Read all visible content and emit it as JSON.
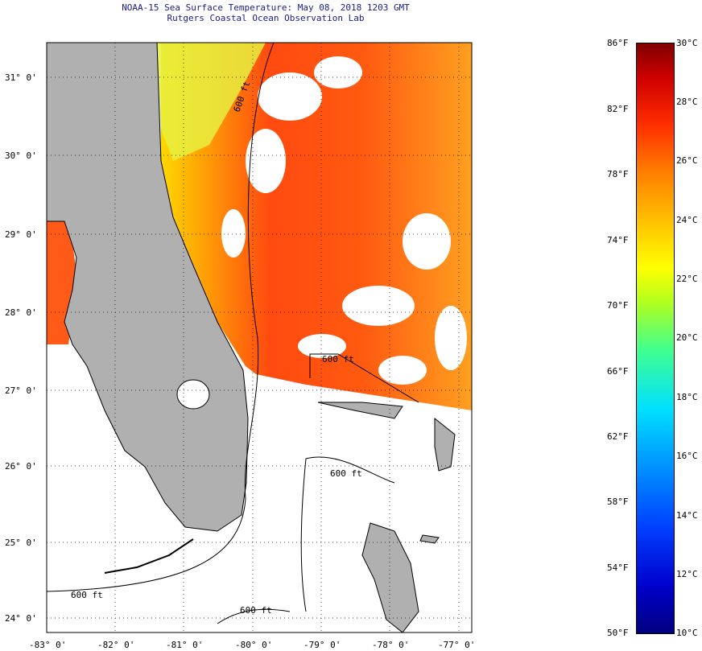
{
  "title": {
    "line1": "NOAA-15 Sea Surface Temperature:  May 08, 2018 1203 GMT",
    "line2": "Rutgers Coastal Ocean Observation Lab"
  },
  "map": {
    "lat_labels": [
      "31° 0'",
      "30° 0'",
      "29° 0'",
      "28° 0'",
      "27° 0'",
      "26° 0'",
      "25° 0'",
      "24° 0'"
    ],
    "lon_labels": [
      "-83° 0'",
      "-82° 0'",
      "-81° 0'",
      "-80° 0'",
      "-79° 0'",
      "-78° 0'",
      "-77° 0'"
    ],
    "contour_labels": [
      "600 ft",
      "600 ft",
      "600 ft",
      "600 ft",
      "600 ft"
    ],
    "colors": {
      "land": "#b0b0b0",
      "warm": "#ff4010",
      "orange": "#ff9a20",
      "yellow": "#ffd800"
    }
  },
  "colorbar": {
    "fahrenheit": [
      "86°F",
      "82°F",
      "78°F",
      "74°F",
      "70°F",
      "66°F",
      "62°F",
      "58°F",
      "54°F",
      "50°F"
    ],
    "celsius": [
      "30°C",
      "28°C",
      "26°C",
      "24°C",
      "22°C",
      "20°C",
      "18°C",
      "16°C",
      "14°C",
      "12°C",
      "10°C"
    ]
  }
}
